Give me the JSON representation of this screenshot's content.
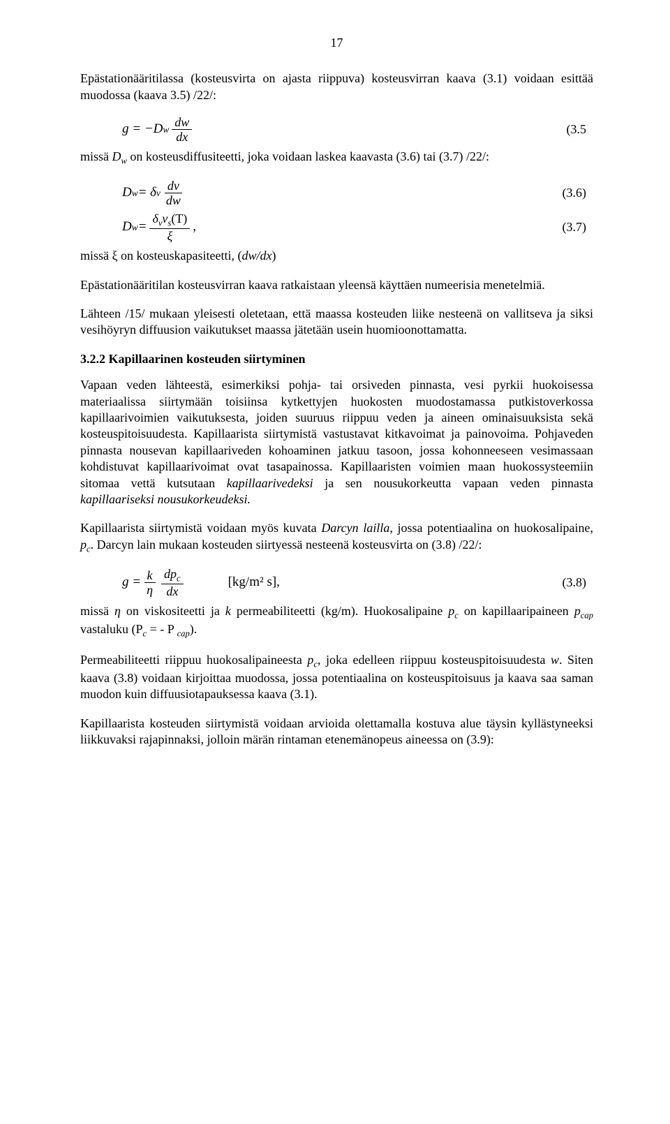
{
  "page_number": "17",
  "p1": "Epästationääritilassa (kosteusvirta on ajasta riippuva) kosteusvirran kaava (3.1) voidaan esittää muodossa (kaava 3.5) /22/:",
  "eq35": {
    "lhs": "g = −D",
    "lhs_sub": "w",
    "frac_num": "dw",
    "frac_den": "dx",
    "num": "(3.5"
  },
  "p2_a": "missä ",
  "p2_b": " on kosteusdiffusiteetti, joka voidaan laskea kaavasta (3.6) tai (3.7) /22/:",
  "eq36": {
    "lhs": "D",
    "lhs_sub": "w",
    "eq": " = δ",
    "eq_sub": "v",
    "frac_num": "dv",
    "frac_den": "dw",
    "num": "(3.6)"
  },
  "eq37": {
    "lhs": "D",
    "lhs_sub": "w",
    "eq": " = ",
    "frac_num_a": "δ",
    "frac_num_sub1": "v",
    "frac_num_b": "v",
    "frac_num_sub2": "s",
    "frac_num_c": "(T)",
    "frac_den": "ξ",
    "tail": ",",
    "num": "(3.7)"
  },
  "p3_a": "missä ξ on kosteuskapasiteetti, (",
  "p3_b": ")",
  "p4": "Epästationääritilan kosteusvirran kaava ratkaistaan yleensä käyttäen numeerisia menetelmiä.",
  "p5": "Lähteen /15/ mukaan yleisesti oletetaan, että maassa kosteuden liike nesteenä on vallitseva ja siksi vesihöyryn diffuusion vaikutukset maassa jätetään usein huomioonottamatta.",
  "heading": "3.2.2   Kapillaarinen kosteuden siirtyminen",
  "p6_a": "Vapaan veden lähteestä, esimerkiksi pohja- tai orsiveden pinnasta, vesi pyrkii huokoisessa materiaalissa siirtymään toisiinsa kytkettyjen huokosten muodostamassa putkistoverkossa kapillaarivoimien vaikutuksesta, joiden suuruus riippuu veden ja aineen ominaisuuksista sekä kosteuspitoisuudesta. Kapillaarista siirtymistä vastustavat kitkavoimat ja painovoima. Pohjaveden pinnasta nousevan kapillaariveden kohoaminen jatkuu tasoon, jossa kohonneeseen vesimassaan kohdistuvat kapillaarivoimat ovat tasapainossa. Kapillaaristen voimien maan huokossysteemiin sitomaa vettä kutsutaan ",
  "p6_b": "kapillaarivedeksi",
  "p6_c": " ja sen nousukorkeutta vapaan veden pinnasta ",
  "p6_d": "kapillaariseksi nousukorkeudeksi.",
  "p7_a": "Kapillaarista siirtymistä voidaan myös kuvata ",
  "p7_b": "Darcyn lailla",
  "p7_c": ", jossa potentiaalina on huokosalipaine, ",
  "p7_d": ". Darcyn lain mukaan kosteuden siirtyessä nesteenä kosteusvirta on (3.8) /22/:",
  "eq38": {
    "lhs": "g = ",
    "frac_num_a": "k",
    "frac_den_a": "η",
    "frac_num_b": "dp",
    "frac_num_sub": "c",
    "frac_den_b": "dx",
    "unit": "[kg/m² s],",
    "num": "(3.8)"
  },
  "p8_a": "missä ",
  "p8_b": "η",
  "p8_c": " on viskositeetti ja ",
  "p8_d": "k",
  "p8_e": " permeabiliteetti (kg/m). Huokosalipaine ",
  "p8_f": " on kapillaaripaineen ",
  "p8_g": " vastaluku (P",
  "p8_h": " = - P ",
  "p8_i": ").",
  "p9_a": "Permeabiliteetti riippuu huokosalipaineesta ",
  "p9_b": ", joka edelleen riippuu kosteuspitoisuudesta ",
  "p9_c": "w",
  "p9_d": ". Siten kaava (3.8) voidaan kirjoittaa muodossa, jossa potentiaalina on kosteuspitoisuus ja kaava saa saman muodon kuin diffuusiotapauksessa kaava (3.1).",
  "p10": "Kapillaarista kosteuden siirtymistä voidaan arvioida olettamalla kostuva alue täysin kyllästyneeksi liikkuvaksi rajapinnaksi, jolloin märän rintaman etenemänopeus aineessa on (3.9):",
  "symbols": {
    "Dw": "D",
    "Dw_sub": "w",
    "dwdx": "dw/dx",
    "pc": "p",
    "pc_sub": "c",
    "pcap": "p",
    "pcap_sub": "cap",
    "Pc_sub": "c",
    "Pcap_sub": "cap"
  }
}
